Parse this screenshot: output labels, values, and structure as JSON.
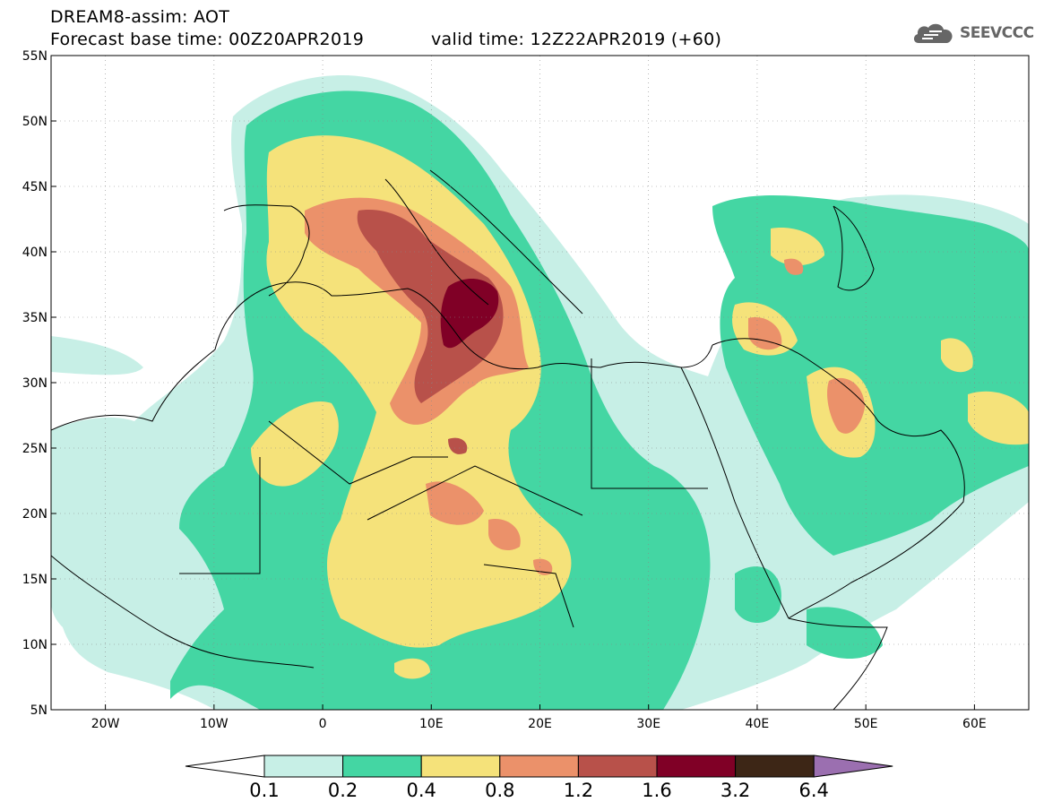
{
  "title": {
    "line1": "DREAM8-assim: AOT",
    "line2": "Forecast base time: 00Z20APR2019",
    "valid": "valid time: 12Z22APR2019 (+60)"
  },
  "logo": {
    "text": "SEEVCCC",
    "icon": "cloud-icon"
  },
  "map": {
    "lon_range": [
      -25,
      65
    ],
    "lat_range": [
      5,
      55
    ],
    "x_ticks": [
      {
        "lon": -20,
        "label": "20W"
      },
      {
        "lon": -10,
        "label": "10W"
      },
      {
        "lon": 0,
        "label": "0"
      },
      {
        "lon": 10,
        "label": "10E"
      },
      {
        "lon": 20,
        "label": "20E"
      },
      {
        "lon": 30,
        "label": "30E"
      },
      {
        "lon": 40,
        "label": "40E"
      },
      {
        "lon": 50,
        "label": "50E"
      },
      {
        "lon": 60,
        "label": "60E"
      }
    ],
    "y_ticks": [
      {
        "lat": 5,
        "label": "5N"
      },
      {
        "lat": 10,
        "label": "10N"
      },
      {
        "lat": 15,
        "label": "15N"
      },
      {
        "lat": 20,
        "label": "20N"
      },
      {
        "lat": 25,
        "label": "25N"
      },
      {
        "lat": 30,
        "label": "30N"
      },
      {
        "lat": 35,
        "label": "35N"
      },
      {
        "lat": 40,
        "label": "40N"
      },
      {
        "lat": 45,
        "label": "45N"
      },
      {
        "lat": 50,
        "label": "50N"
      },
      {
        "lat": 55,
        "label": "55N"
      }
    ],
    "grid": true,
    "field": "AOT"
  },
  "legend": {
    "colors": [
      "#ffffff",
      "#c7efe6",
      "#44d6a3",
      "#f5e27a",
      "#eb916a",
      "#b8514a",
      "#800026",
      "#3d2616",
      "#9b6fb0"
    ],
    "labels": [
      "0.1",
      "0.2",
      "0.4",
      "0.8",
      "1.2",
      "1.6",
      "3.2",
      "6.4"
    ]
  }
}
